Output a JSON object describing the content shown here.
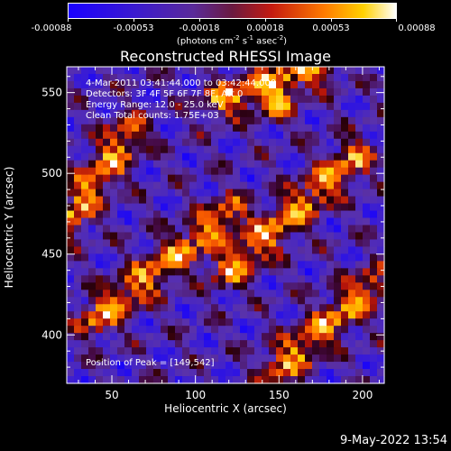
{
  "chart_data": {
    "type": "heatmap",
    "title": "Reconstructed RHESSI Image",
    "xlabel": "Heliocentric X (arcsec)",
    "ylabel": "Heliocentric Y (arcsec)",
    "xlim": [
      23,
      213
    ],
    "ylim": [
      370,
      566
    ],
    "xticks": [
      50,
      100,
      150,
      200
    ],
    "yticks": [
      400,
      450,
      500,
      550
    ],
    "colorbar": {
      "ticks": [
        "-0.00088",
        "-0.00053",
        "-0.00018",
        "0.00018",
        "0.00053",
        "0.00088"
      ],
      "units_prefix": "(photons cm",
      "units_exp1": "-2",
      "units_mid": " s",
      "units_exp2": "-1",
      "units_mid2": " asec",
      "units_exp3": "-2",
      "units_suffix": ")",
      "range": [
        -0.00088,
        0.00088
      ],
      "colormap": "blue-purple-red-yellow-white"
    },
    "annotations": {
      "time": "4-Mar-2011 03:41:44.000 to 03:42:44.000",
      "detectors": "Detectors: 3F 4F 5F 6F 7F 8F, Att 0",
      "energy": "Energy Range: 12.0 - 25.0 keV",
      "clean": "Clean      Total counts: 1.75E+03",
      "peak": "Position of Peak = [149,542]"
    },
    "peak_position": [
      149,
      542
    ],
    "bright_ridges": [
      {
        "from": [
          23,
          470
        ],
        "to": [
          60,
          525
        ]
      },
      {
        "from": [
          40,
          410
        ],
        "to": [
          120,
          475
        ]
      },
      {
        "from": [
          120,
          440
        ],
        "to": [
          195,
          510
        ]
      },
      {
        "from": [
          150,
          380
        ],
        "to": [
          205,
          430
        ]
      },
      {
        "from": [
          115,
          545
        ],
        "to": [
          175,
          566
        ]
      }
    ]
  },
  "footer": {
    "date": "9-May-2022 13:54"
  }
}
